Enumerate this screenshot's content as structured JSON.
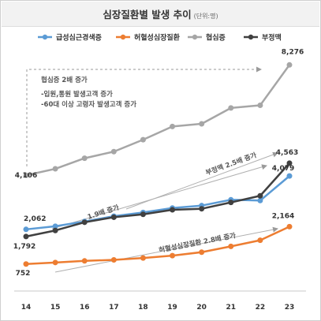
{
  "header": {
    "title": "심장질환별 발생 추이",
    "unit": "(단위:명)"
  },
  "chart_data": {
    "type": "line",
    "x": [
      14,
      15,
      16,
      17,
      18,
      19,
      20,
      21,
      22,
      23
    ],
    "series": [
      {
        "name": "급성심근경색증",
        "color": "#5b9bd5",
        "values": [
          2062,
          2180,
          2360,
          2560,
          2700,
          2870,
          2960,
          3180,
          3150,
          4079
        ]
      },
      {
        "name": "허혈성심장질환",
        "color": "#ed7d31",
        "values": [
          752,
          810,
          870,
          910,
          980,
          1070,
          1200,
          1420,
          1650,
          2164
        ]
      },
      {
        "name": "협심증",
        "color": "#a6a6a6",
        "values": [
          4106,
          4350,
          4750,
          5000,
          5450,
          5950,
          6050,
          6650,
          6750,
          8276
        ]
      },
      {
        "name": "부정맥",
        "color": "#404040",
        "values": [
          1792,
          2020,
          2330,
          2520,
          2630,
          2800,
          2840,
          3080,
          3330,
          4563
        ]
      }
    ],
    "point_labels": [
      {
        "series": 0,
        "index": 0,
        "text": "2,062"
      },
      {
        "series": 0,
        "index": 9,
        "text": "4,079"
      },
      {
        "series": 1,
        "index": 0,
        "text": "752"
      },
      {
        "series": 1,
        "index": 9,
        "text": "2,164"
      },
      {
        "series": 2,
        "index": 0,
        "text": "4,106"
      },
      {
        "series": 2,
        "index": 9,
        "text": "8,276"
      },
      {
        "series": 3,
        "index": 0,
        "text": "1,792"
      },
      {
        "series": 3,
        "index": 9,
        "text": "4,563"
      }
    ],
    "annotations": {
      "angina": [
        "협심증 2배 증가",
        "-입원,통원 발생고객 증가",
        "-60대 이상 고령자 발생고객 증가"
      ],
      "arrhythmia": "부정맥 2.5배 증가",
      "acute": "1.9배 증가",
      "ischemic": "허혈성심장질환 2.8배 증가"
    },
    "ylim": [
      0,
      9000
    ],
    "grid": false,
    "legend": "top"
  }
}
